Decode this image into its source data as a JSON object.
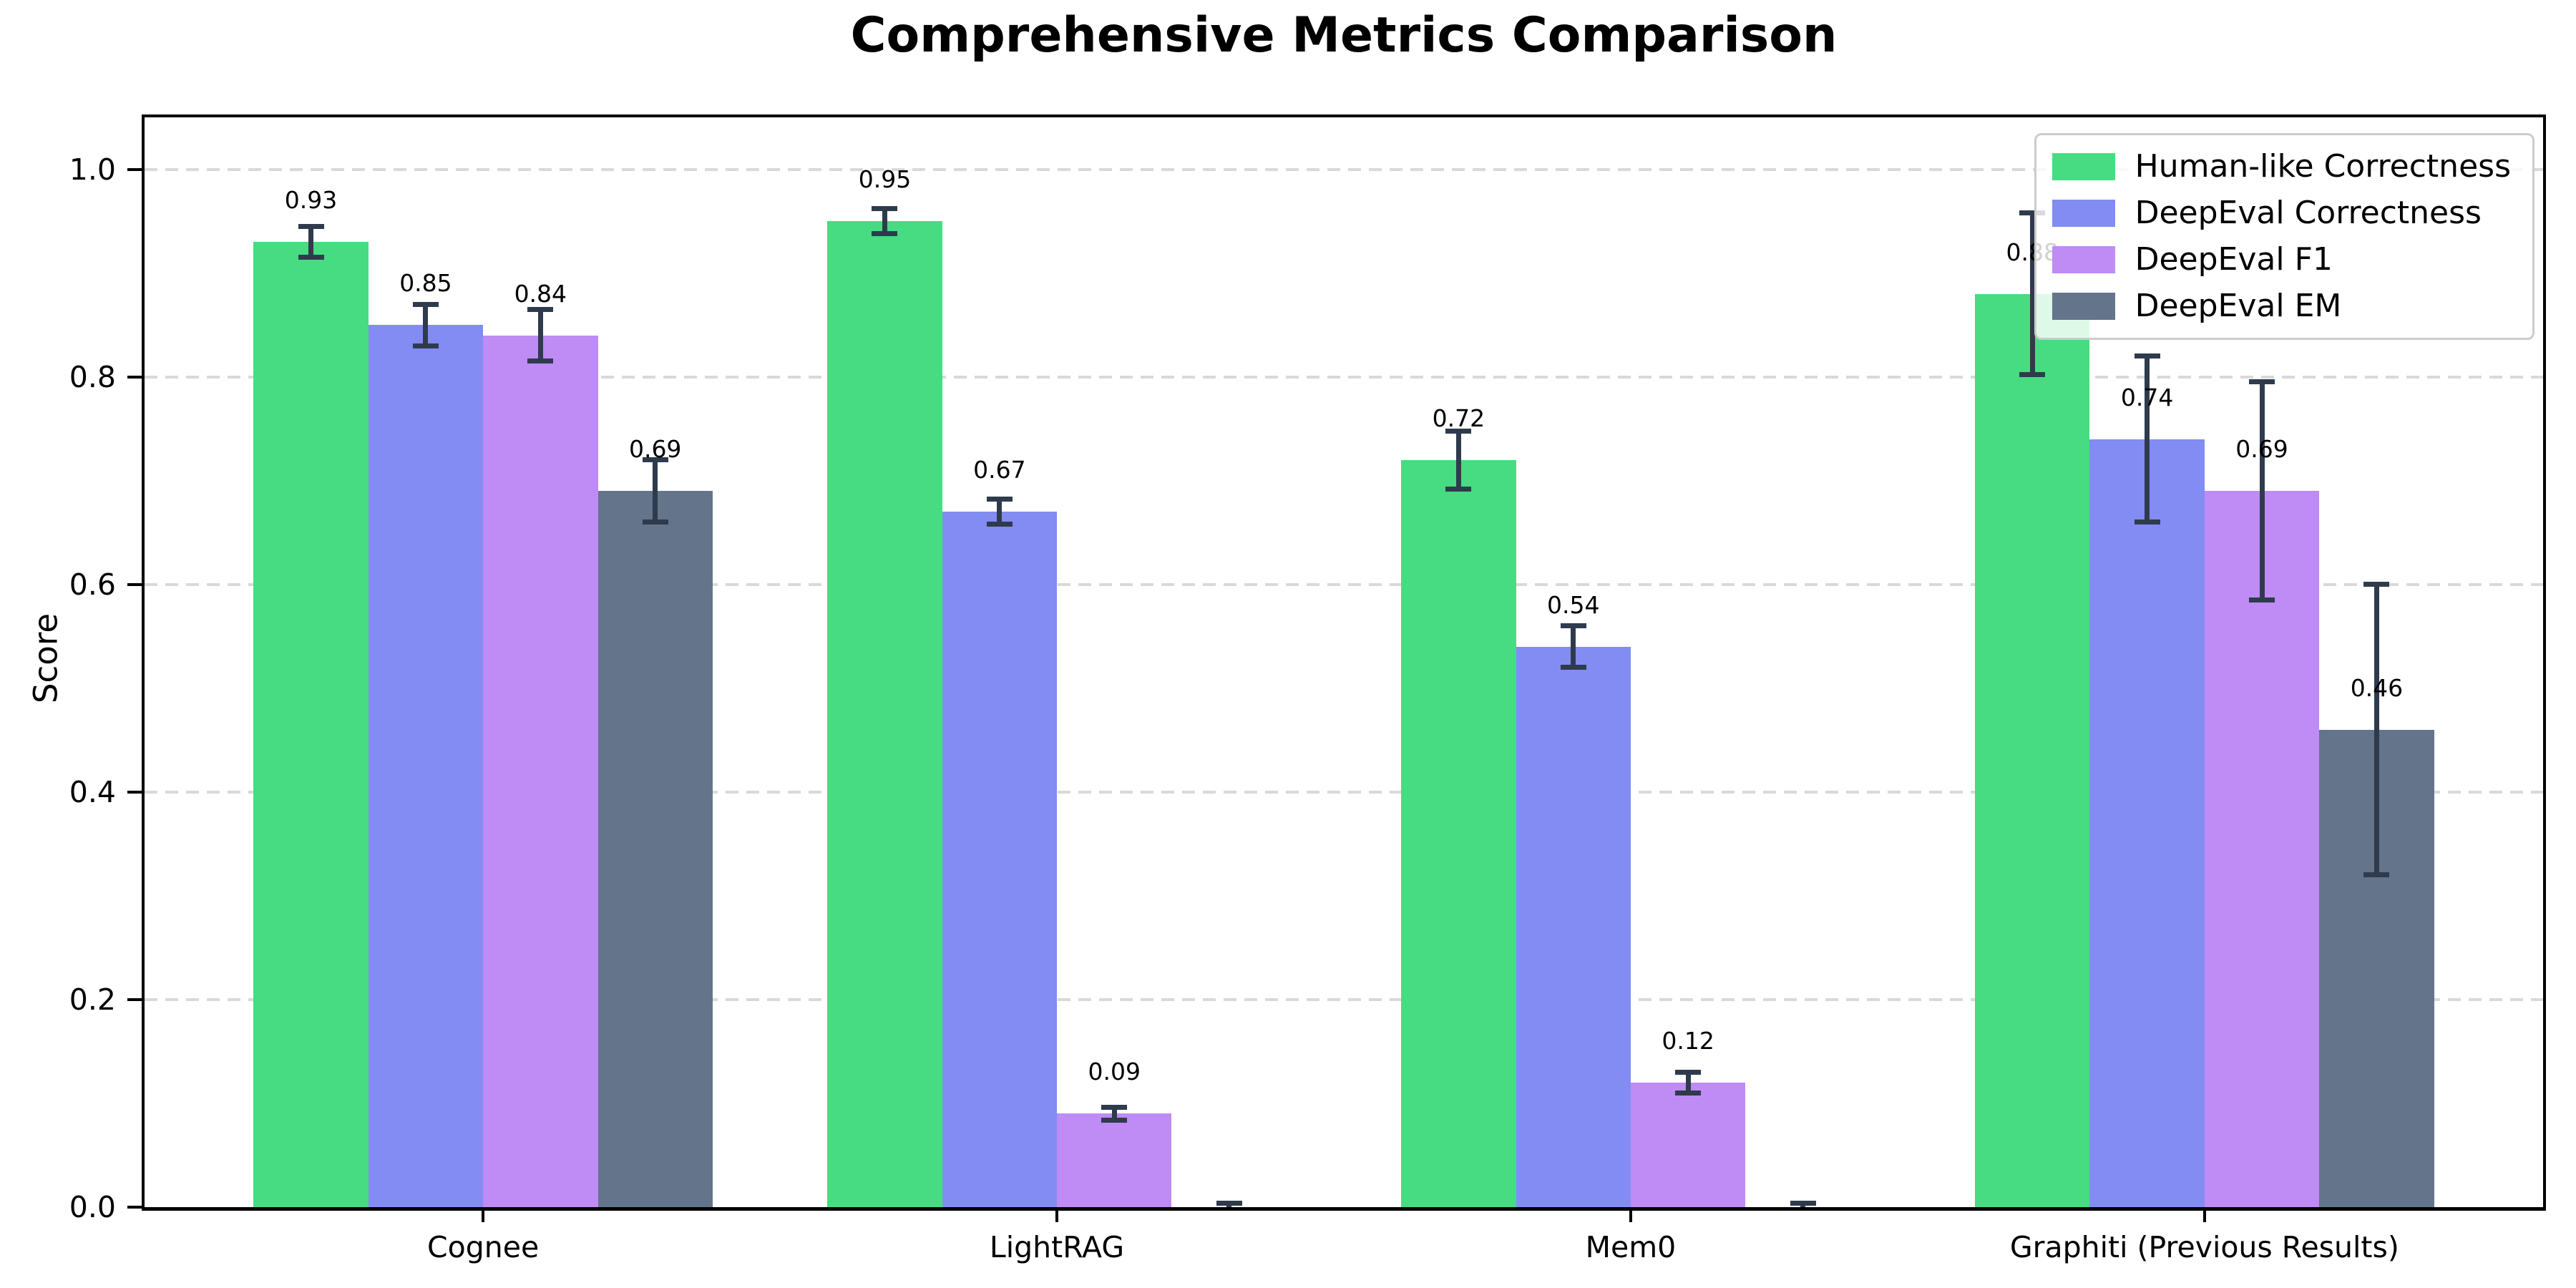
{
  "chart_data": {
    "type": "bar",
    "title": "Comprehensive Metrics Comparison",
    "xlabel": "",
    "ylabel": "Score",
    "categories": [
      "Cognee",
      "LightRAG",
      "Mem0",
      "Graphiti (Previous Results)"
    ],
    "series": [
      {
        "name": "Human-like Correctness",
        "color": "#47dc81",
        "values": [
          0.93,
          0.95,
          0.72,
          0.88
        ],
        "errors": [
          0.015,
          0.012,
          0.028,
          0.078
        ],
        "labels": [
          "0.93",
          "0.95",
          "0.72",
          "0.88"
        ]
      },
      {
        "name": "DeepEval Correctness",
        "color": "#828cf2",
        "values": [
          0.85,
          0.67,
          0.54,
          0.74
        ],
        "errors": [
          0.02,
          0.012,
          0.02,
          0.08
        ],
        "labels": [
          "0.85",
          "0.67",
          "0.54",
          "0.74"
        ]
      },
      {
        "name": "DeepEval F1",
        "color": "#bf8bf5",
        "values": [
          0.84,
          0.09,
          0.12,
          0.69
        ],
        "errors": [
          0.025,
          0.006,
          0.01,
          0.105
        ],
        "labels": [
          "0.84",
          "0.09",
          "0.12",
          "0.69"
        ]
      },
      {
        "name": "DeepEval EM",
        "color": "#64748b",
        "values": [
          0.69,
          0.0,
          0.0,
          0.46
        ],
        "errors": [
          0.03,
          0.004,
          0.004,
          0.14
        ],
        "labels": [
          "0.69",
          null,
          null,
          "0.46"
        ]
      }
    ],
    "ylim": [
      0,
      1.05
    ],
    "yticks": [
      0.0,
      0.2,
      0.4,
      0.6,
      0.8,
      1.0
    ],
    "ytick_labels": [
      "0.0",
      "0.2",
      "0.4",
      "0.6",
      "0.8",
      "1.0"
    ],
    "grid": true,
    "legend_position": "upper right",
    "error_bar_color": "#2f3b4d",
    "bar_width_units": 0.2,
    "x_axis_units_total": 4.18,
    "x_left_pad_units": 0.59
  }
}
